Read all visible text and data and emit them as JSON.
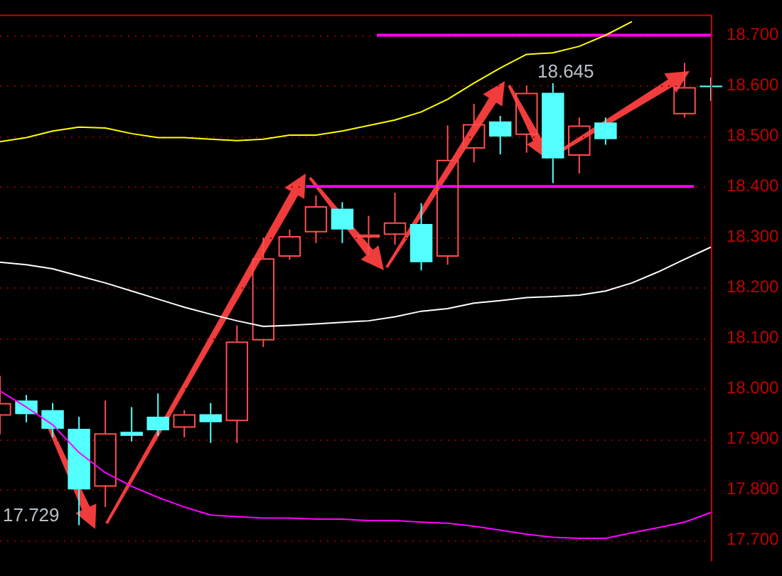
{
  "chart_data": {
    "type": "candlestick",
    "categories": [
      null,
      null,
      null,
      null,
      null,
      null,
      null,
      null,
      null,
      null,
      null,
      null,
      null,
      null,
      null,
      null,
      null,
      null,
      null,
      null,
      null,
      null,
      null,
      null,
      null,
      null,
      null,
      null
    ],
    "ohlc": [
      [
        17.949,
        18.025,
        17.909,
        17.971
      ],
      [
        17.976,
        17.987,
        17.933,
        17.949
      ],
      [
        17.957,
        17.971,
        17.903,
        17.92
      ],
      [
        17.92,
        17.944,
        17.729,
        17.8
      ],
      [
        17.808,
        17.976,
        17.765,
        17.911
      ],
      [
        17.914,
        17.963,
        17.895,
        17.906
      ],
      [
        17.944,
        17.99,
        17.906,
        17.917
      ],
      [
        17.925,
        17.957,
        17.903,
        17.949
      ],
      [
        17.949,
        17.971,
        17.892,
        17.933
      ],
      [
        17.938,
        18.125,
        17.892,
        18.093
      ],
      [
        18.098,
        18.299,
        18.082,
        18.258
      ],
      [
        18.264,
        18.315,
        18.255,
        18.302
      ],
      [
        18.312,
        18.383,
        18.288,
        18.361
      ],
      [
        18.356,
        18.369,
        18.288,
        18.315
      ],
      [
        18.302,
        18.342,
        18.264,
        18.305
      ],
      [
        18.307,
        18.388,
        18.285,
        18.329
      ],
      [
        18.326,
        18.367,
        18.234,
        18.25
      ],
      [
        18.264,
        18.521,
        18.245,
        18.453
      ],
      [
        18.478,
        18.564,
        18.448,
        18.524
      ],
      [
        18.529,
        18.54,
        18.464,
        18.499
      ],
      [
        18.505,
        18.6,
        18.467,
        18.586
      ],
      [
        18.586,
        18.605,
        18.407,
        18.456
      ],
      [
        18.464,
        18.537,
        18.426,
        18.521
      ],
      [
        18.527,
        18.537,
        18.483,
        18.494
      ],
      null,
      null,
      [
        18.546,
        18.645,
        18.537,
        18.597
      ],
      [
        18.6,
        18.616,
        18.57,
        18.597
      ]
    ],
    "series": [
      {
        "type": "line",
        "color": "#ffff00",
        "values": [
          18.489,
          18.497,
          18.51,
          18.518,
          18.516,
          18.505,
          18.497,
          18.497,
          18.494,
          18.491,
          18.494,
          18.502,
          18.502,
          18.51,
          18.521,
          18.532,
          18.548,
          18.573,
          18.605,
          18.635,
          18.662,
          18.665,
          18.678,
          18.7,
          18.727,
          null,
          null,
          null
        ]
      },
      {
        "type": "line",
        "color": "#ffffff",
        "values": [
          18.25,
          18.245,
          18.237,
          18.223,
          18.209,
          18.193,
          18.177,
          18.161,
          18.147,
          18.134,
          18.123,
          18.125,
          18.128,
          18.131,
          18.134,
          18.142,
          18.153,
          18.158,
          18.169,
          18.174,
          18.18,
          18.182,
          18.185,
          18.193,
          18.209,
          18.231,
          18.256,
          18.28
        ]
      },
      {
        "type": "line",
        "color": "#ff00ff",
        "values": [
          17.995,
          17.963,
          17.928,
          17.873,
          17.833,
          17.806,
          17.784,
          17.765,
          17.749,
          17.746,
          17.743,
          17.743,
          17.741,
          17.741,
          17.738,
          17.738,
          17.735,
          17.733,
          17.727,
          17.719,
          17.711,
          17.705,
          17.703,
          17.703,
          17.714,
          17.724,
          17.735,
          17.754
        ]
      }
    ],
    "ref_lines": [
      {
        "axis": "y",
        "value": 18.7,
        "color": "#ff00ff"
      },
      {
        "axis": "y",
        "value": 18.4,
        "color": "#ff00ff"
      }
    ],
    "annotations": [
      "18.645",
      "17.729"
    ],
    "ylim": [
      17.657,
      18.741
    ],
    "yticks": [
      {
        "value": 17.7,
        "label": "17.700"
      },
      {
        "value": 17.8,
        "label": "17.800"
      },
      {
        "value": 17.9,
        "label": "17.900"
      },
      {
        "value": 18.0,
        "label": "18.000"
      },
      {
        "value": 18.1,
        "label": "18.100"
      },
      {
        "value": 18.2,
        "label": "18.200"
      },
      {
        "value": 18.3,
        "label": "18.300"
      },
      {
        "value": 18.4,
        "label": "18.400"
      },
      {
        "value": 18.5,
        "label": "18.500"
      },
      {
        "value": 18.6,
        "label": "18.600"
      },
      {
        "value": 18.7,
        "label": "18.700"
      }
    ],
    "tick_labels": "y",
    "grid": "y",
    "legend": false
  }
}
